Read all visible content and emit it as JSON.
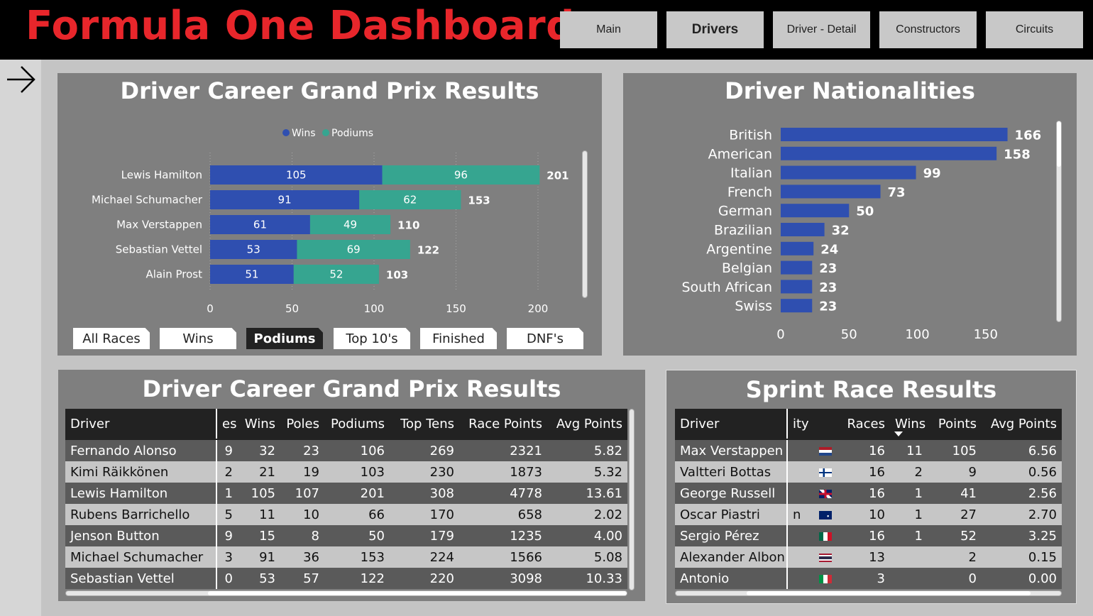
{
  "header": {
    "title": "Formula One Dashboard",
    "nav": [
      {
        "label": "Main",
        "active": false
      },
      {
        "label": "Drivers",
        "active": true
      },
      {
        "label": "Driver - Detail",
        "active": false
      },
      {
        "label": "Constructors",
        "active": false
      },
      {
        "label": "Circuits",
        "active": false
      }
    ]
  },
  "career_chart": {
    "title": "Driver Career Grand Prix Results",
    "tabs": [
      {
        "label": "All Races",
        "active": false
      },
      {
        "label": "Wins",
        "active": false
      },
      {
        "label": "Podiums",
        "active": true
      },
      {
        "label": "Top 10's",
        "active": false
      },
      {
        "label": "Finished",
        "active": false
      },
      {
        "label": "DNF's",
        "active": false
      }
    ]
  },
  "nationality_chart": {
    "title": "Driver Nationalities"
  },
  "chart_data": [
    {
      "type": "bar",
      "orientation": "horizontal",
      "stacked": true,
      "title": "Driver Career Grand Prix Results",
      "categories": [
        "Lewis Hamilton",
        "Michael Schumacher",
        "Max Verstappen",
        "Sebastian Vettel",
        "Alain Prost"
      ],
      "series": [
        {
          "name": "Wins",
          "color": "#2f4fb0",
          "values": [
            105,
            91,
            61,
            53,
            51
          ]
        },
        {
          "name": "Podiums",
          "color": "#36a590",
          "values": [
            96,
            62,
            49,
            69,
            52
          ]
        }
      ],
      "totals": [
        201,
        153,
        110,
        122,
        103
      ],
      "xlim": [
        0,
        200
      ],
      "xticks": [
        0,
        50,
        100,
        150,
        200
      ],
      "legend": "top-center",
      "grid": true
    },
    {
      "type": "bar",
      "orientation": "horizontal",
      "title": "Driver Nationalities",
      "categories": [
        "British",
        "American",
        "Italian",
        "French",
        "German",
        "Brazilian",
        "Argentine",
        "Belgian",
        "South African",
        "Swiss"
      ],
      "values": [
        166,
        158,
        99,
        73,
        50,
        32,
        24,
        23,
        23,
        23
      ],
      "color": "#2f4fb0",
      "xlim": [
        0,
        150
      ],
      "xticks": [
        0,
        50,
        100,
        150
      ],
      "grid": false
    }
  ],
  "career_table": {
    "title": "Driver Career Grand Prix Results",
    "columns": [
      "Driver",
      "es",
      "Wins",
      "Poles",
      "Podiums",
      "Top Tens",
      "Race Points",
      "Avg Points"
    ],
    "rows": [
      [
        "Fernando Alonso",
        "9",
        "32",
        "23",
        "106",
        "269",
        "2321",
        "5.82"
      ],
      [
        "Kimi Räikkönen",
        "2",
        "21",
        "19",
        "103",
        "230",
        "1873",
        "5.32"
      ],
      [
        "Lewis Hamilton",
        "1",
        "105",
        "107",
        "201",
        "308",
        "4778",
        "13.61"
      ],
      [
        "Rubens Barrichello",
        "5",
        "11",
        "10",
        "66",
        "170",
        "658",
        "2.02"
      ],
      [
        "Jenson Button",
        "9",
        "15",
        "8",
        "50",
        "179",
        "1235",
        "4.00"
      ],
      [
        "Michael Schumacher",
        "3",
        "91",
        "36",
        "153",
        "224",
        "1566",
        "5.08"
      ],
      [
        "Sebastian Vettel",
        "0",
        "53",
        "57",
        "122",
        "220",
        "3098",
        "10.33"
      ]
    ]
  },
  "sprint_table": {
    "title": "Sprint Race Results",
    "columns": [
      "Driver",
      "ity",
      "",
      "Races",
      "Wins",
      "Points",
      "Avg Points"
    ],
    "rows": [
      {
        "cells": [
          "Max Verstappen",
          "",
          "16",
          "11",
          "105",
          "6.56"
        ],
        "flag": "nl-flag"
      },
      {
        "cells": [
          "Valtteri Bottas",
          "",
          "16",
          "2",
          "9",
          "0.56"
        ],
        "flag": "fi-flag"
      },
      {
        "cells": [
          "George Russell",
          "",
          "16",
          "1",
          "41",
          "2.56"
        ],
        "flag": "gb-flag"
      },
      {
        "cells": [
          "Oscar Piastri",
          "n",
          "10",
          "1",
          "27",
          "2.70"
        ],
        "flag": "au-flag"
      },
      {
        "cells": [
          "Sergio Pérez",
          "",
          "16",
          "1",
          "52",
          "3.25"
        ],
        "flag": "mx-flag"
      },
      {
        "cells": [
          "Alexander Albon",
          "",
          "13",
          "",
          "2",
          "0.15"
        ],
        "flag": "th-flag"
      },
      {
        "cells": [
          "Antonio",
          "",
          "3",
          "",
          "0",
          "0.00"
        ],
        "flag": "it-flag"
      }
    ]
  }
}
